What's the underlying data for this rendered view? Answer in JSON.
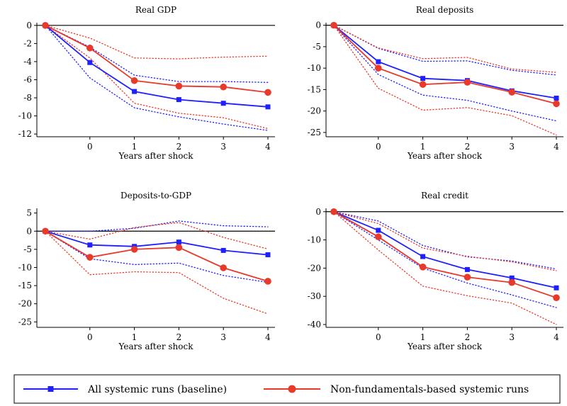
{
  "legend": {
    "entries": [
      {
        "label": "All systemic runs (baseline)",
        "color": "#1f1fff",
        "marker": "square"
      },
      {
        "label": "Non-fundamentals-based systemic runs",
        "color": "#e8392a",
        "marker": "circle"
      }
    ]
  },
  "chart_data": [
    {
      "type": "line",
      "title": "Real GDP",
      "xlabel": "Years after shock",
      "ylabel": "",
      "x": [
        -1,
        0,
        1,
        2,
        3,
        4
      ],
      "xticks": [
        "0",
        "1",
        "2",
        "3",
        "4"
      ],
      "yticks": [
        0,
        -2,
        -4,
        -6,
        -8,
        -10,
        -12
      ],
      "ylim": [
        -12.3,
        0.3
      ],
      "series": [
        {
          "name": "All systemic runs (baseline)",
          "color": "#1f1fff",
          "marker": "square",
          "values": [
            0,
            -4.1,
            -7.3,
            -8.2,
            -8.6,
            -9.0
          ],
          "lower": [
            0,
            -5.8,
            -9.1,
            -10.1,
            -10.9,
            -11.6
          ],
          "upper": [
            0,
            -2.4,
            -5.5,
            -6.2,
            -6.2,
            -6.3
          ]
        },
        {
          "name": "Non-fundamentals-based systemic runs",
          "color": "#e8392a",
          "marker": "circle",
          "values": [
            0,
            -2.5,
            -6.1,
            -6.7,
            -6.8,
            -7.4
          ],
          "lower": [
            0,
            -3.6,
            -8.6,
            -9.7,
            -10.2,
            -11.4
          ],
          "upper": [
            0,
            -1.4,
            -3.6,
            -3.7,
            -3.5,
            -3.4
          ]
        }
      ]
    },
    {
      "type": "line",
      "title": "Real deposits",
      "xlabel": "Years after shock",
      "ylabel": "",
      "x": [
        -1,
        0,
        1,
        2,
        3,
        4
      ],
      "xticks": [
        "0",
        "1",
        "2",
        "3",
        "4"
      ],
      "yticks": [
        0,
        -5,
        -10,
        -15,
        -20,
        -25
      ],
      "ylim": [
        -26,
        0.6
      ],
      "series": [
        {
          "name": "All systemic runs (baseline)",
          "color": "#1f1fff",
          "marker": "square",
          "values": [
            0,
            -8.5,
            -12.4,
            -12.9,
            -15.3,
            -17.0
          ],
          "lower": [
            0,
            -11.5,
            -16.3,
            -17.5,
            -20.0,
            -22.3
          ],
          "upper": [
            0,
            -5.4,
            -8.4,
            -8.3,
            -10.5,
            -11.6
          ]
        },
        {
          "name": "Non-fundamentals-based systemic runs",
          "color": "#e8392a",
          "marker": "circle",
          "values": [
            0,
            -10.0,
            -13.8,
            -13.3,
            -15.6,
            -18.3
          ],
          "lower": [
            0,
            -14.7,
            -19.8,
            -19.2,
            -21.1,
            -25.6
          ],
          "upper": [
            0,
            -5.3,
            -7.8,
            -7.5,
            -10.2,
            -11.0
          ]
        }
      ]
    },
    {
      "type": "line",
      "title": "Deposits-to-GDP",
      "xlabel": "Years after shock",
      "ylabel": "",
      "x": [
        -1,
        0,
        1,
        2,
        3,
        4
      ],
      "xticks": [
        "0",
        "1",
        "2",
        "3",
        "4"
      ],
      "yticks": [
        5,
        0,
        -5,
        -10,
        -15,
        -20,
        -25
      ],
      "ylim": [
        -26.5,
        6.3
      ],
      "series": [
        {
          "name": "All systemic runs (baseline)",
          "color": "#1f1fff",
          "marker": "square",
          "values": [
            0,
            -3.8,
            -4.2,
            -3.0,
            -5.3,
            -6.5
          ],
          "lower": [
            0,
            -7.6,
            -9.2,
            -8.8,
            -12.2,
            -14.1
          ],
          "upper": [
            0,
            0.0,
            0.8,
            2.8,
            1.5,
            1.2
          ]
        },
        {
          "name": "Non-fundamentals-based systemic runs",
          "color": "#e8392a",
          "marker": "circle",
          "values": [
            0,
            -7.2,
            -5.0,
            -4.5,
            -10.1,
            -13.8
          ],
          "lower": [
            0,
            -12.0,
            -11.2,
            -11.4,
            -18.5,
            -22.8
          ],
          "upper": [
            0,
            -2.2,
            1.0,
            2.4,
            -1.7,
            -4.9
          ]
        }
      ]
    },
    {
      "type": "line",
      "title": "Real credit",
      "xlabel": "Years after shock",
      "ylabel": "",
      "x": [
        -1,
        0,
        1,
        2,
        3,
        4
      ],
      "xticks": [
        "0",
        "1",
        "2",
        "3",
        "4"
      ],
      "yticks": [
        0,
        -10,
        -20,
        -30,
        -40
      ],
      "ylim": [
        -41,
        1.2
      ],
      "series": [
        {
          "name": "All systemic runs (baseline)",
          "color": "#1f1fff",
          "marker": "square",
          "values": [
            0,
            -6.6,
            -15.9,
            -20.5,
            -23.5,
            -27.0
          ],
          "lower": [
            0,
            -10.0,
            -20.0,
            -25.3,
            -29.5,
            -34.0
          ],
          "upper": [
            0,
            -3.3,
            -12.0,
            -16.0,
            -17.5,
            -20.3
          ]
        },
        {
          "name": "Non-fundamentals-based systemic runs",
          "color": "#e8392a",
          "marker": "circle",
          "values": [
            0,
            -8.9,
            -19.6,
            -23.2,
            -25.1,
            -30.5
          ],
          "lower": [
            0,
            -13.6,
            -26.4,
            -29.8,
            -32.4,
            -40.0
          ],
          "upper": [
            0,
            -4.2,
            -12.9,
            -15.8,
            -17.8,
            -20.9
          ]
        }
      ]
    }
  ]
}
